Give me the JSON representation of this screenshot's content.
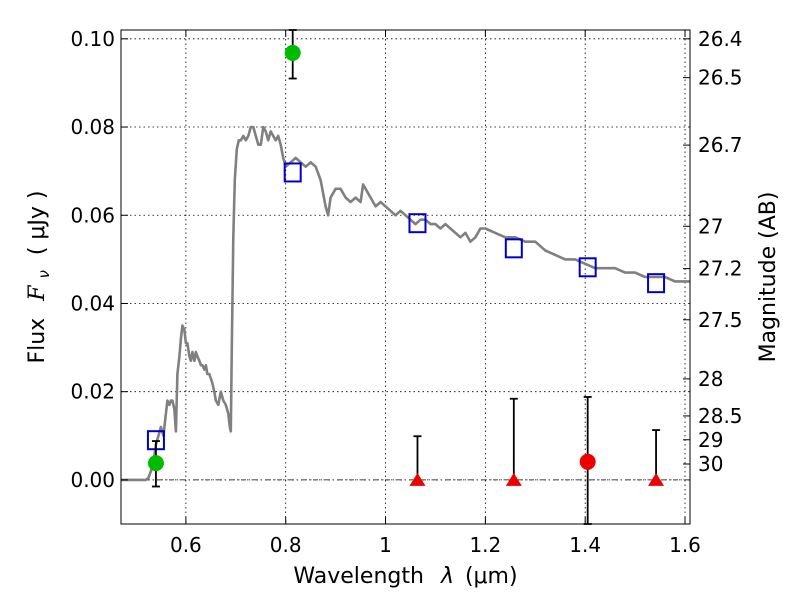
{
  "chart_data": {
    "type": "scatter",
    "xlabel": "Wavelength",
    "xlabel_symbol": "λ",
    "xlabel_unit": "(μm)",
    "ylabel": "Flux",
    "ylabel_symbol": "F",
    "ylabel_sub": "ν",
    "ylabel_unit": "( μJy )",
    "ylabel_right": "Magnitude (AB)",
    "xlim": [
      0.47,
      1.61
    ],
    "ylim": [
      -0.01,
      0.102
    ],
    "x_ticks": [
      0.6,
      0.8,
      1.0,
      1.2,
      1.4,
      1.6
    ],
    "x_tick_labels": [
      "0.6",
      "0.8",
      "1",
      "1.2",
      "1.4",
      "1.6"
    ],
    "y_ticks": [
      0.0,
      0.02,
      0.04,
      0.06,
      0.08,
      0.1
    ],
    "y_tick_labels": [
      "0.00",
      "0.02",
      "0.04",
      "0.06",
      "0.08",
      "0.10"
    ],
    "mag_ticks": [
      {
        "label": "26.4",
        "flux": 0.1
      },
      {
        "label": "26.5",
        "flux": 0.0912
      },
      {
        "label": "26.7",
        "flux": 0.0759
      },
      {
        "label": "27",
        "flux": 0.0575
      },
      {
        "label": "27.2",
        "flux": 0.0479
      },
      {
        "label": "27.5",
        "flux": 0.0363
      },
      {
        "label": "28",
        "flux": 0.0229
      },
      {
        "label": "28.5",
        "flux": 0.0145
      },
      {
        "label": "29",
        "flux": 0.0091
      },
      {
        "label": "30",
        "flux": 0.0036
      }
    ],
    "grid": true,
    "zero_line": true,
    "series": [
      {
        "kind": "spectrum",
        "color": "#808080",
        "points": [
          [
            0.47,
            0.0
          ],
          [
            0.51,
            0.0
          ],
          [
            0.52,
            0.0
          ],
          [
            0.525,
            0.0005
          ],
          [
            0.53,
            0.002
          ],
          [
            0.535,
            0.004
          ],
          [
            0.54,
            0.008
          ],
          [
            0.545,
            0.01
          ],
          [
            0.55,
            0.012
          ],
          [
            0.555,
            0.01
          ],
          [
            0.56,
            0.015
          ],
          [
            0.563,
            0.018
          ],
          [
            0.567,
            0.017
          ],
          [
            0.57,
            0.018
          ],
          [
            0.573,
            0.018
          ],
          [
            0.577,
            0.016
          ],
          [
            0.58,
            0.011
          ],
          [
            0.583,
            0.024
          ],
          [
            0.587,
            0.028
          ],
          [
            0.59,
            0.032
          ],
          [
            0.593,
            0.035
          ],
          [
            0.597,
            0.034
          ],
          [
            0.6,
            0.031
          ],
          [
            0.603,
            0.031
          ],
          [
            0.607,
            0.028
          ],
          [
            0.61,
            0.027
          ],
          [
            0.613,
            0.029
          ],
          [
            0.617,
            0.027
          ],
          [
            0.62,
            0.029
          ],
          [
            0.623,
            0.028
          ],
          [
            0.627,
            0.027
          ],
          [
            0.63,
            0.026
          ],
          [
            0.633,
            0.026
          ],
          [
            0.637,
            0.025
          ],
          [
            0.64,
            0.026
          ],
          [
            0.643,
            0.024
          ],
          [
            0.647,
            0.024
          ],
          [
            0.65,
            0.023
          ],
          [
            0.653,
            0.022
          ],
          [
            0.657,
            0.02
          ],
          [
            0.66,
            0.018
          ],
          [
            0.665,
            0.017
          ],
          [
            0.67,
            0.02
          ],
          [
            0.675,
            0.018
          ],
          [
            0.68,
            0.017
          ],
          [
            0.685,
            0.015
          ],
          [
            0.688,
            0.012
          ],
          [
            0.69,
            0.011
          ],
          [
            0.692,
            0.03
          ],
          [
            0.695,
            0.055
          ],
          [
            0.698,
            0.068
          ],
          [
            0.702,
            0.075
          ],
          [
            0.706,
            0.077
          ],
          [
            0.71,
            0.077
          ],
          [
            0.715,
            0.078
          ],
          [
            0.72,
            0.077
          ],
          [
            0.725,
            0.078
          ],
          [
            0.73,
            0.08
          ],
          [
            0.735,
            0.08
          ],
          [
            0.74,
            0.078
          ],
          [
            0.745,
            0.076
          ],
          [
            0.75,
            0.076
          ],
          [
            0.755,
            0.08
          ],
          [
            0.76,
            0.079
          ],
          [
            0.765,
            0.077
          ],
          [
            0.77,
            0.079
          ],
          [
            0.775,
            0.078
          ],
          [
            0.78,
            0.077
          ],
          [
            0.785,
            0.078
          ],
          [
            0.79,
            0.076
          ],
          [
            0.795,
            0.073
          ],
          [
            0.8,
            0.071
          ],
          [
            0.81,
            0.072
          ],
          [
            0.82,
            0.073
          ],
          [
            0.83,
            0.072
          ],
          [
            0.84,
            0.071
          ],
          [
            0.85,
            0.072
          ],
          [
            0.86,
            0.071
          ],
          [
            0.87,
            0.068
          ],
          [
            0.88,
            0.062
          ],
          [
            0.885,
            0.06
          ],
          [
            0.89,
            0.064
          ],
          [
            0.9,
            0.066
          ],
          [
            0.91,
            0.066
          ],
          [
            0.92,
            0.064
          ],
          [
            0.93,
            0.063
          ],
          [
            0.94,
            0.064
          ],
          [
            0.95,
            0.063
          ],
          [
            0.955,
            0.067
          ],
          [
            0.96,
            0.066
          ],
          [
            0.97,
            0.064
          ],
          [
            0.98,
            0.062
          ],
          [
            0.99,
            0.063
          ],
          [
            1.0,
            0.062
          ],
          [
            1.01,
            0.061
          ],
          [
            1.02,
            0.06
          ],
          [
            1.03,
            0.061
          ],
          [
            1.04,
            0.06
          ],
          [
            1.05,
            0.059
          ],
          [
            1.06,
            0.058
          ],
          [
            1.07,
            0.059
          ],
          [
            1.08,
            0.059
          ],
          [
            1.09,
            0.058
          ],
          [
            1.1,
            0.058
          ],
          [
            1.11,
            0.057
          ],
          [
            1.12,
            0.058
          ],
          [
            1.13,
            0.057
          ],
          [
            1.14,
            0.056
          ],
          [
            1.15,
            0.055
          ],
          [
            1.16,
            0.056
          ],
          [
            1.17,
            0.054
          ],
          [
            1.18,
            0.055
          ],
          [
            1.19,
            0.057
          ],
          [
            1.2,
            0.057
          ],
          [
            1.22,
            0.056
          ],
          [
            1.24,
            0.055
          ],
          [
            1.26,
            0.055
          ],
          [
            1.28,
            0.054
          ],
          [
            1.3,
            0.054
          ],
          [
            1.32,
            0.052
          ],
          [
            1.34,
            0.051
          ],
          [
            1.36,
            0.05
          ],
          [
            1.38,
            0.05
          ],
          [
            1.4,
            0.049
          ],
          [
            1.42,
            0.048
          ],
          [
            1.44,
            0.048
          ],
          [
            1.46,
            0.048
          ],
          [
            1.48,
            0.047
          ],
          [
            1.5,
            0.047
          ],
          [
            1.52,
            0.046
          ],
          [
            1.54,
            0.046
          ],
          [
            1.56,
            0.046
          ],
          [
            1.58,
            0.045
          ],
          [
            1.61,
            0.045
          ]
        ]
      },
      {
        "kind": "model_photometry",
        "marker": "square",
        "color": "#0000cc",
        "points": [
          [
            0.54,
            0.009
          ],
          [
            0.814,
            0.0697
          ],
          [
            1.064,
            0.0582
          ],
          [
            1.257,
            0.0525
          ],
          [
            1.405,
            0.0482
          ],
          [
            1.542,
            0.0446
          ]
        ]
      },
      {
        "kind": "detections",
        "marker": "circle",
        "color": "#00bb00",
        "points": [
          {
            "x": 0.54,
            "y": 0.0038,
            "err_low": -0.0015,
            "err_high": 0.0088
          },
          {
            "x": 0.814,
            "y": 0.0968,
            "err_low": 0.091,
            "err_high": 0.102
          }
        ]
      },
      {
        "kind": "detections",
        "marker": "circle",
        "color": "#ee0000",
        "points": [
          {
            "x": 1.405,
            "y": 0.0041,
            "err_low": -0.01,
            "err_high": 0.0188
          }
        ]
      },
      {
        "kind": "upper_limits",
        "marker": "triangle",
        "color": "#ee0000",
        "points": [
          {
            "x": 1.064,
            "y": 0.0,
            "err_high": 0.0099
          },
          {
            "x": 1.257,
            "y": 0.0,
            "err_high": 0.0184
          },
          {
            "x": 1.542,
            "y": 0.0,
            "err_high": 0.0113
          }
        ]
      }
    ]
  }
}
